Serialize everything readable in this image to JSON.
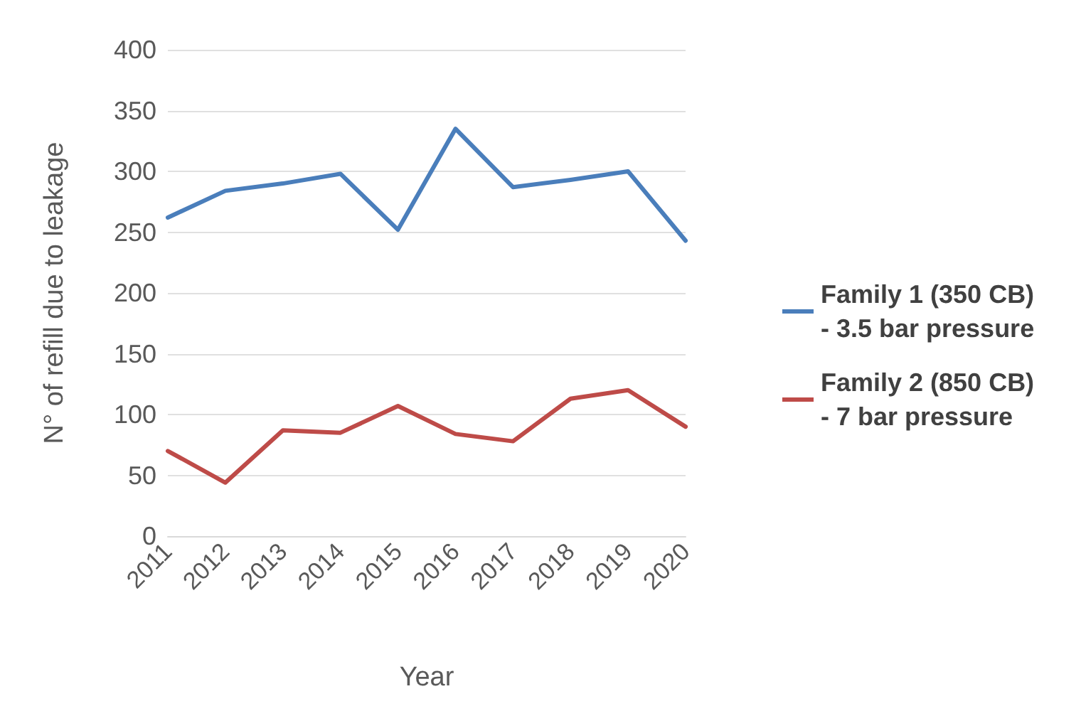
{
  "chart_data": {
    "type": "line",
    "xlabel": "Year",
    "ylabel": "N° of refill due to leakage",
    "categories": [
      "2011",
      "2012",
      "2013",
      "2014",
      "2015",
      "2016",
      "2017",
      "2018",
      "2019",
      "2020"
    ],
    "series": [
      {
        "name": "Family 1 (350 CB) - 3.5 bar pressure",
        "color": "#4a7ebb",
        "values": [
          262,
          284,
          290,
          298,
          252,
          335,
          287,
          293,
          300,
          243
        ]
      },
      {
        "name": "Family 2 (850 CB) - 7 bar pressure",
        "color": "#be4b48",
        "values": [
          70,
          44,
          87,
          85,
          107,
          84,
          78,
          113,
          120,
          90
        ]
      }
    ],
    "ylim": [
      0,
      400
    ],
    "yticks": [
      0,
      50,
      100,
      150,
      200,
      250,
      300,
      350,
      400
    ],
    "grid": "y",
    "legend": "right",
    "marker": "none",
    "line_style": "solid"
  }
}
